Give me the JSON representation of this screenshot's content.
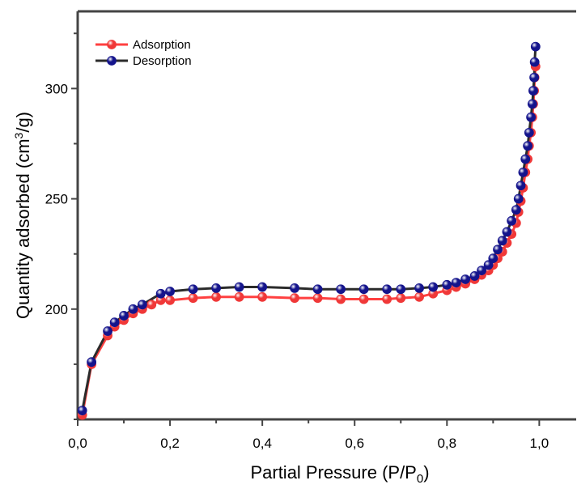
{
  "chart_data": {
    "type": "line",
    "xlabel_main": "Partial Pressure (P/P",
    "xlabel_sub": "0",
    "xlabel_end": ")",
    "ylabel_main": "Quantity adsorbed (cm",
    "ylabel_sup": "3",
    "ylabel_end": "/g)",
    "xlim": [
      0,
      1.08
    ],
    "ylim": [
      150,
      335
    ],
    "x_ticks": [
      0.0,
      0.2,
      0.4,
      0.6,
      0.8,
      1.0
    ],
    "x_tick_labels": [
      "0,0",
      "0,2",
      "0,4",
      "0,6",
      "0,8",
      "1,0"
    ],
    "y_ticks": [
      200,
      250,
      300
    ],
    "y_tick_labels": [
      "200",
      "250",
      "300"
    ],
    "legend_position": "top-left",
    "series": [
      {
        "name": "Adsorption",
        "line_color": "#ff4040",
        "marker_color": "#f03838",
        "x": [
          0.01,
          0.03,
          0.065,
          0.08,
          0.1,
          0.12,
          0.14,
          0.16,
          0.18,
          0.2,
          0.25,
          0.3,
          0.35,
          0.4,
          0.47,
          0.52,
          0.57,
          0.62,
          0.67,
          0.7,
          0.74,
          0.77,
          0.8,
          0.82,
          0.84,
          0.86,
          0.875,
          0.89,
          0.9,
          0.91,
          0.92,
          0.93,
          0.94,
          0.95,
          0.955,
          0.96,
          0.965,
          0.97,
          0.975,
          0.978,
          0.982,
          0.985,
          0.987,
          0.989,
          0.99,
          0.992
        ],
        "y": [
          152,
          175,
          188,
          192,
          195,
          198,
          200,
          202,
          204,
          204,
          205,
          205.5,
          205.5,
          205.5,
          205,
          205,
          204.5,
          204.5,
          204.5,
          205,
          205.5,
          207,
          208.5,
          210,
          211.5,
          213.5,
          215.5,
          217.5,
          220,
          223,
          226,
          230,
          234,
          239,
          244,
          249,
          255,
          262,
          268,
          274,
          280,
          287,
          293,
          299,
          305,
          310
        ]
      },
      {
        "name": "Desorption",
        "line_color": "#2b2b2b",
        "marker_color": "#14148c",
        "x": [
          0.992,
          0.99,
          0.989,
          0.987,
          0.985,
          0.982,
          0.978,
          0.975,
          0.97,
          0.965,
          0.96,
          0.955,
          0.95,
          0.94,
          0.93,
          0.92,
          0.91,
          0.9,
          0.89,
          0.875,
          0.86,
          0.84,
          0.82,
          0.8,
          0.77,
          0.74,
          0.7,
          0.67,
          0.62,
          0.57,
          0.52,
          0.47,
          0.4,
          0.35,
          0.3,
          0.25,
          0.2,
          0.18,
          0.14,
          0.12,
          0.1,
          0.08,
          0.065,
          0.03,
          0.01
        ],
        "y": [
          319,
          312,
          305,
          299,
          293,
          287,
          280,
          274,
          268,
          262,
          256,
          250,
          245,
          240,
          235,
          231,
          227,
          223,
          220,
          217.5,
          215,
          213.5,
          212,
          211,
          210,
          209.5,
          209,
          209,
          209,
          209,
          209,
          209.5,
          210,
          210,
          209.5,
          209,
          208,
          207,
          202,
          200,
          197,
          194,
          190,
          176,
          154
        ]
      }
    ]
  }
}
